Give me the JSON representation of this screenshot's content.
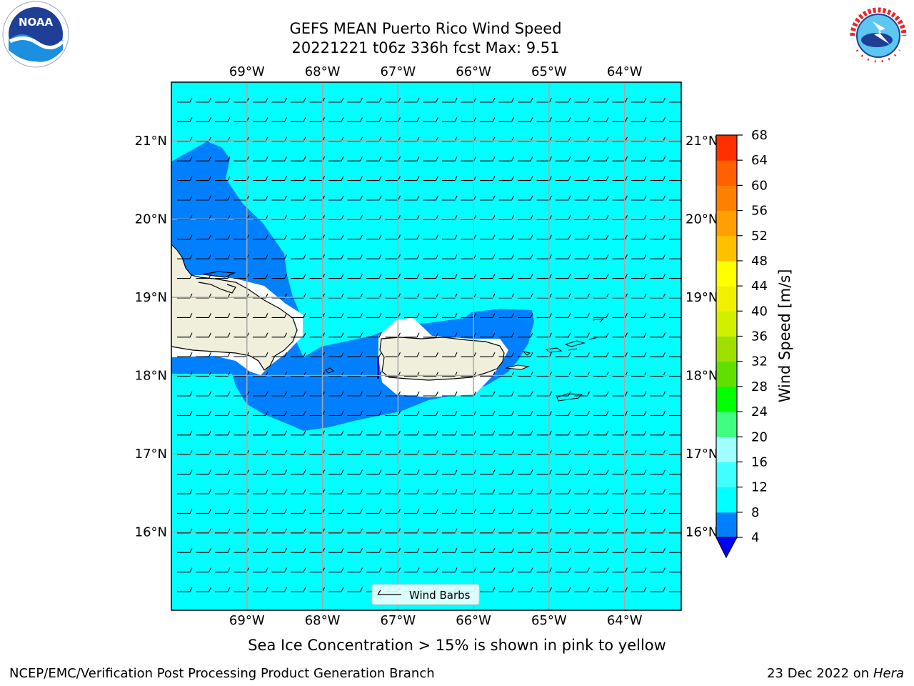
{
  "header": {
    "title_line1": "GEFS MEAN Puerto Rico Wind Speed",
    "title_line2": "20221221 t06z 336h fcst   Max: 9.51"
  },
  "logos": {
    "left": "noaa-logo",
    "left_text": "NOAA",
    "right": "nws-logo",
    "right_text": "NATIONAL WEATHER SERVICE"
  },
  "map": {
    "lon_labels": [
      "69°W",
      "68°W",
      "67°W",
      "66°W",
      "65°W",
      "64°W"
    ],
    "lat_labels": [
      "21°N",
      "20°N",
      "19°N",
      "18°N",
      "17°N",
      "16°N"
    ],
    "lon_range": [
      -70.0,
      -63.25
    ],
    "lat_range": [
      15.0,
      21.75
    ],
    "legend_label": "Wind Barbs",
    "colors": {
      "ocean_8_12": "#00ffff",
      "band_4_8": "#0080ff",
      "land": "#efefdc",
      "calm": "#ffffff"
    }
  },
  "colorbar": {
    "label": "Wind Speed [m/s]",
    "ticks": [
      "4",
      "8",
      "12",
      "16",
      "20",
      "24",
      "28",
      "32",
      "36",
      "40",
      "44",
      "48",
      "52",
      "56",
      "60",
      "64",
      "68"
    ],
    "colors": [
      "#0080ff",
      "#00ffff",
      "#40ffff",
      "#a0ffff",
      "#40ff80",
      "#00ff00",
      "#60e000",
      "#a0e000",
      "#d0f000",
      "#f0f000",
      "#ffff00",
      "#ffc000",
      "#ffa000",
      "#ff8000",
      "#ff6000",
      "#ff3000"
    ],
    "extend_color": "#0000ff"
  },
  "caption": "Sea Ice Concentration > 15% is shown in pink to yellow",
  "footer": {
    "left": "NCEP/EMC/Verification Post Processing Product Generation Branch",
    "right_date": "23 Dec 2022 on",
    "right_host": "Hera"
  }
}
